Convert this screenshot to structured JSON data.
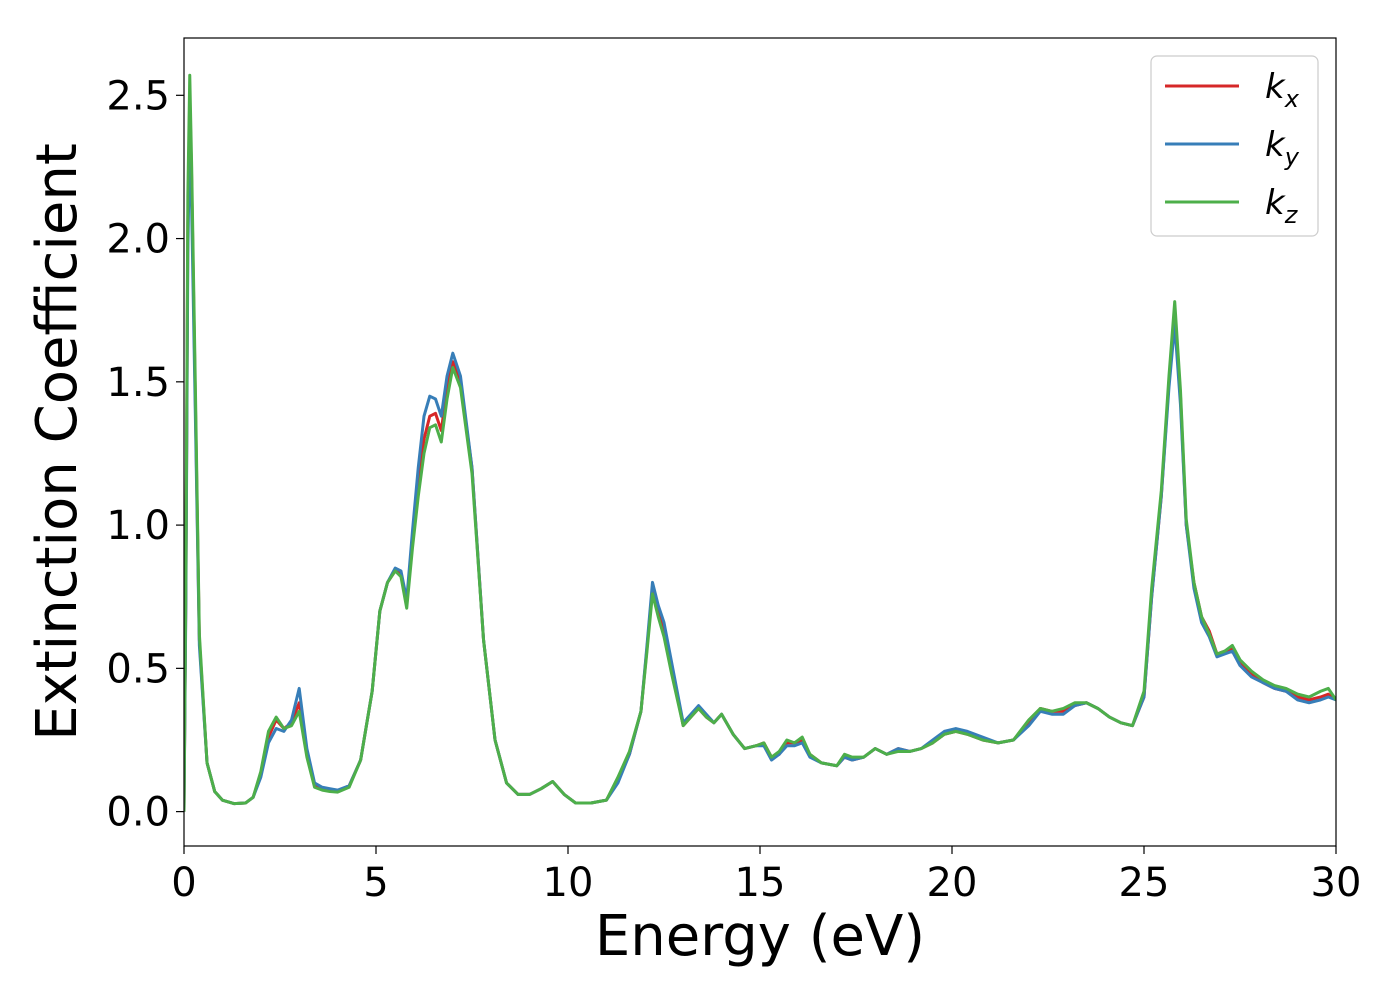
{
  "chart_data": {
    "type": "line",
    "xlabel": "Energy (eV)",
    "ylabel": "Extinction Coefficient",
    "xlim": [
      0,
      30
    ],
    "ylim": [
      -0.12,
      2.7
    ],
    "xticks": [
      0,
      5,
      10,
      15,
      20,
      25,
      30
    ],
    "yticks": [
      0.0,
      0.5,
      1.0,
      1.5,
      2.0,
      2.5
    ],
    "xtick_labels": [
      "0",
      "5",
      "10",
      "15",
      "20",
      "25",
      "30"
    ],
    "ytick_labels": [
      "0.0",
      "0.5",
      "1.0",
      "1.5",
      "2.0",
      "2.5"
    ],
    "grid": false,
    "legend_position": "top-right",
    "x": [
      0,
      0.05,
      0.1,
      0.15,
      0.2,
      0.3,
      0.4,
      0.6,
      0.8,
      1.0,
      1.3,
      1.6,
      1.8,
      2.0,
      2.2,
      2.4,
      2.6,
      2.8,
      3.0,
      3.2,
      3.4,
      3.6,
      3.8,
      4.0,
      4.3,
      4.6,
      4.9,
      5.1,
      5.3,
      5.5,
      5.65,
      5.8,
      5.95,
      6.1,
      6.25,
      6.4,
      6.55,
      6.7,
      6.85,
      7.0,
      7.2,
      7.5,
      7.8,
      8.1,
      8.4,
      8.7,
      9.0,
      9.3,
      9.6,
      9.9,
      10.2,
      10.6,
      11.0,
      11.3,
      11.6,
      11.9,
      12.05,
      12.2,
      12.35,
      12.5,
      12.7,
      13.0,
      13.2,
      13.4,
      13.6,
      13.8,
      14.0,
      14.3,
      14.6,
      14.9,
      15.1,
      15.3,
      15.5,
      15.7,
      15.9,
      16.1,
      16.3,
      16.6,
      17.0,
      17.2,
      17.4,
      17.7,
      18.0,
      18.3,
      18.6,
      18.9,
      19.2,
      19.5,
      19.8,
      20.1,
      20.4,
      20.8,
      21.2,
      21.6,
      22.0,
      22.3,
      22.6,
      22.9,
      23.2,
      23.5,
      23.8,
      24.1,
      24.4,
      24.7,
      25.0,
      25.2,
      25.45,
      25.65,
      25.8,
      25.95,
      26.1,
      26.3,
      26.5,
      26.7,
      26.9,
      27.1,
      27.3,
      27.5,
      27.8,
      28.1,
      28.4,
      28.7,
      29.0,
      29.3,
      29.6,
      29.8,
      30.0
    ],
    "series": [
      {
        "name": "k_x",
        "color": "#d62728",
        "values": [
          0.0,
          0.8,
          2.05,
          2.5,
          2.2,
          1.4,
          0.6,
          0.17,
          0.07,
          0.04,
          0.028,
          0.03,
          0.05,
          0.13,
          0.26,
          0.32,
          0.29,
          0.31,
          0.38,
          0.2,
          0.09,
          0.08,
          0.075,
          0.072,
          0.09,
          0.18,
          0.42,
          0.7,
          0.8,
          0.84,
          0.83,
          0.73,
          0.95,
          1.15,
          1.3,
          1.38,
          1.39,
          1.33,
          1.48,
          1.57,
          1.5,
          1.2,
          0.6,
          0.25,
          0.1,
          0.06,
          0.06,
          0.08,
          0.105,
          0.06,
          0.03,
          0.03,
          0.04,
          0.11,
          0.2,
          0.35,
          0.56,
          0.78,
          0.7,
          0.63,
          0.5,
          0.3,
          0.33,
          0.36,
          0.33,
          0.31,
          0.34,
          0.27,
          0.22,
          0.23,
          0.24,
          0.19,
          0.2,
          0.24,
          0.24,
          0.25,
          0.2,
          0.17,
          0.16,
          0.19,
          0.18,
          0.19,
          0.22,
          0.2,
          0.22,
          0.21,
          0.22,
          0.24,
          0.27,
          0.28,
          0.27,
          0.25,
          0.24,
          0.25,
          0.31,
          0.36,
          0.35,
          0.35,
          0.37,
          0.38,
          0.36,
          0.33,
          0.31,
          0.3,
          0.4,
          0.75,
          1.1,
          1.5,
          1.75,
          1.45,
          1.0,
          0.8,
          0.68,
          0.63,
          0.55,
          0.56,
          0.57,
          0.52,
          0.48,
          0.45,
          0.43,
          0.42,
          0.4,
          0.39,
          0.4,
          0.41,
          0.39
        ]
      },
      {
        "name": "k_y",
        "color": "#377eb8",
        "values": [
          0.0,
          0.75,
          1.95,
          2.38,
          2.1,
          1.35,
          0.58,
          0.17,
          0.07,
          0.04,
          0.028,
          0.03,
          0.05,
          0.12,
          0.24,
          0.29,
          0.28,
          0.32,
          0.43,
          0.22,
          0.1,
          0.085,
          0.08,
          0.075,
          0.09,
          0.18,
          0.42,
          0.7,
          0.8,
          0.85,
          0.84,
          0.74,
          0.98,
          1.2,
          1.38,
          1.45,
          1.44,
          1.38,
          1.52,
          1.6,
          1.52,
          1.2,
          0.6,
          0.25,
          0.1,
          0.06,
          0.06,
          0.08,
          0.105,
          0.06,
          0.03,
          0.03,
          0.04,
          0.1,
          0.2,
          0.35,
          0.57,
          0.8,
          0.72,
          0.66,
          0.52,
          0.31,
          0.34,
          0.37,
          0.34,
          0.31,
          0.34,
          0.27,
          0.22,
          0.23,
          0.23,
          0.18,
          0.2,
          0.23,
          0.23,
          0.24,
          0.19,
          0.17,
          0.16,
          0.19,
          0.18,
          0.19,
          0.22,
          0.2,
          0.22,
          0.21,
          0.22,
          0.25,
          0.28,
          0.29,
          0.28,
          0.26,
          0.24,
          0.25,
          0.3,
          0.35,
          0.34,
          0.34,
          0.37,
          0.38,
          0.36,
          0.33,
          0.31,
          0.3,
          0.4,
          0.75,
          1.1,
          1.48,
          1.7,
          1.42,
          1.0,
          0.78,
          0.66,
          0.61,
          0.54,
          0.55,
          0.56,
          0.51,
          0.47,
          0.45,
          0.43,
          0.42,
          0.39,
          0.38,
          0.39,
          0.4,
          0.39
        ]
      },
      {
        "name": "k_z",
        "color": "#4daf4a",
        "values": [
          0.0,
          0.85,
          2.15,
          2.57,
          2.25,
          1.45,
          0.62,
          0.17,
          0.07,
          0.04,
          0.028,
          0.03,
          0.05,
          0.14,
          0.28,
          0.33,
          0.29,
          0.3,
          0.35,
          0.19,
          0.085,
          0.075,
          0.07,
          0.068,
          0.085,
          0.18,
          0.42,
          0.7,
          0.8,
          0.84,
          0.82,
          0.71,
          0.92,
          1.1,
          1.25,
          1.34,
          1.35,
          1.29,
          1.44,
          1.55,
          1.48,
          1.18,
          0.6,
          0.25,
          0.1,
          0.06,
          0.06,
          0.08,
          0.105,
          0.06,
          0.03,
          0.03,
          0.04,
          0.12,
          0.21,
          0.35,
          0.55,
          0.76,
          0.68,
          0.61,
          0.48,
          0.3,
          0.33,
          0.36,
          0.33,
          0.31,
          0.34,
          0.27,
          0.22,
          0.23,
          0.24,
          0.19,
          0.21,
          0.25,
          0.24,
          0.26,
          0.2,
          0.17,
          0.16,
          0.2,
          0.19,
          0.19,
          0.22,
          0.2,
          0.21,
          0.21,
          0.22,
          0.24,
          0.27,
          0.28,
          0.27,
          0.25,
          0.24,
          0.25,
          0.32,
          0.36,
          0.35,
          0.36,
          0.38,
          0.38,
          0.36,
          0.33,
          0.31,
          0.3,
          0.42,
          0.78,
          1.12,
          1.52,
          1.78,
          1.47,
          1.02,
          0.8,
          0.68,
          0.62,
          0.55,
          0.56,
          0.58,
          0.53,
          0.49,
          0.46,
          0.44,
          0.43,
          0.41,
          0.4,
          0.42,
          0.43,
          0.39
        ]
      }
    ]
  }
}
